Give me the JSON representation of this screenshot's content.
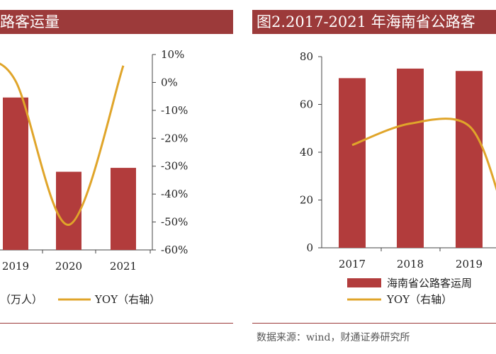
{
  "left_panel": {
    "title": "路客运量"
  },
  "right_panel": {
    "title": "图2.2017-2021 年海南省公路客"
  },
  "source": "数据来源：wind，财通证券研究所",
  "colors": {
    "bar": "#b23c3c",
    "line": "#e0a52a",
    "title_bg": "#9c3a3a"
  },
  "chart_data": [
    {
      "type": "bar",
      "categories": [
        "2019",
        "2020",
        "2021"
      ],
      "series": [
        {
          "values": [
            null,
            null,
            null
          ]
        },
        {
          "axis": "right",
          "type": "line",
          "values": [
            0.5,
            -51,
            6
          ]
        }
      ],
      "y2ticks": [
        "10%",
        "0%",
        "-10%",
        "-20%",
        "-30%",
        "-40%",
        "-50%",
        "-60%"
      ],
      "y2lim": [
        -60,
        10
      ],
      "bar_fraction_of_axis": [
        0.78,
        0.4,
        0.42
      ],
      "legend": {
        "item1": "（万人）",
        "item2": "YOY（右轴）"
      }
    },
    {
      "type": "bar",
      "categories": [
        "2017",
        "2018",
        "2019"
      ],
      "series": [
        {
          "name": "海南省公路客运周",
          "values": [
            71,
            75,
            74
          ]
        },
        {
          "name": "YOY（右轴）",
          "type": "line",
          "axis": "right",
          "values": [
            43,
            52,
            51
          ]
        }
      ],
      "yticks": [
        "80",
        "60",
        "40",
        "20",
        "0"
      ],
      "ylim": [
        0,
        80
      ],
      "legend": {
        "item1": "海南省公路客运周",
        "item2": "YOY（右轴）"
      }
    }
  ]
}
